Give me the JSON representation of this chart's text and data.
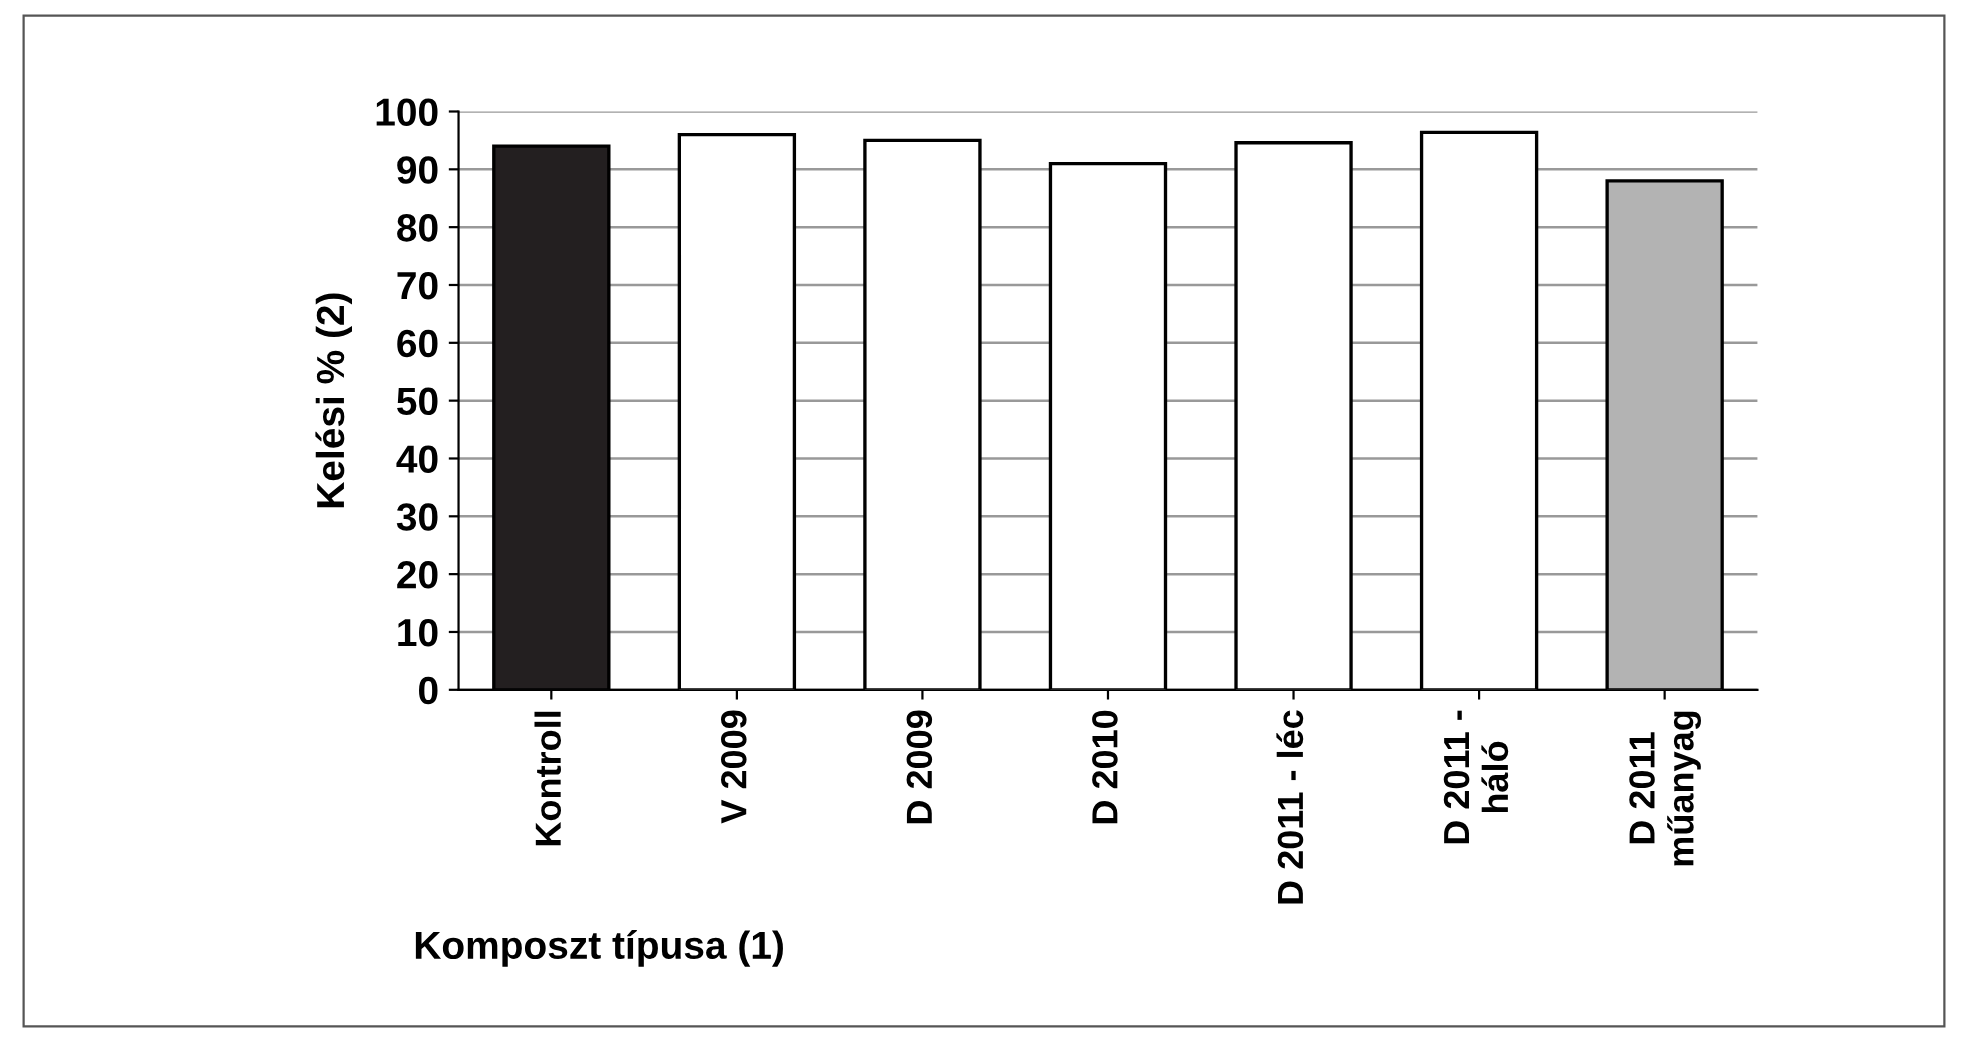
{
  "chart_data": {
    "type": "bar",
    "xlabel": "Komposzt típusa (1)",
    "ylabel": "Kelési % (2)",
    "categories": [
      "Kontroll",
      "V 2009",
      "D 2009",
      "D 2010",
      "D 2011 - léc",
      "D 2011 -\nháló",
      "D 2011\nműanyag"
    ],
    "values": [
      94,
      96,
      95,
      91,
      94.6,
      96.4,
      88
    ],
    "colors": [
      "#231f20",
      "#ffffff",
      "#ffffff",
      "#ffffff",
      "#ffffff",
      "#ffffff",
      "#b3b3b3"
    ],
    "ylim": [
      0,
      100
    ],
    "yticks": [
      0,
      10,
      20,
      30,
      40,
      50,
      60,
      70,
      80,
      90,
      100
    ],
    "grid": "y",
    "legend": false
  }
}
